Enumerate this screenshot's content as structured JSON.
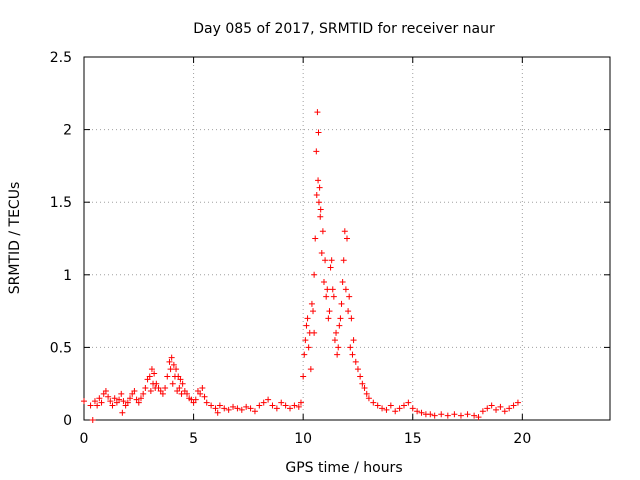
{
  "chart_data": {
    "type": "scatter",
    "title": "Day 085 of 2017, SRMTID for receiver naur",
    "xlabel": "GPS time / hours",
    "ylabel": "SRMTID / TECUs",
    "xlim": [
      0,
      24
    ],
    "ylim": [
      0,
      2.5
    ],
    "xticks": [
      0,
      5,
      10,
      15,
      20
    ],
    "xtick_labels": [
      "0",
      "5",
      "10",
      "15",
      "20"
    ],
    "yticks": [
      0,
      0.5,
      1,
      1.5,
      2,
      2.5
    ],
    "ytick_labels": [
      "0",
      "0.5",
      "1",
      "1.5",
      "2",
      "2.5"
    ],
    "grid": true,
    "marker": "+",
    "series": [
      {
        "name": "SRMTID",
        "color": "#ff0000",
        "x": [
          0.0,
          0.4,
          0.5,
          0.6,
          0.7,
          0.8,
          0.9,
          1.0,
          1.1,
          1.2,
          1.3,
          1.4,
          1.5,
          1.6,
          1.7,
          1.8,
          1.9,
          2.0,
          2.1,
          2.2,
          2.3,
          2.4,
          2.5,
          2.6,
          2.7,
          2.8,
          2.9,
          3.0,
          3.1,
          3.2,
          3.3,
          3.4,
          3.5,
          3.6,
          3.7,
          3.8,
          3.9,
          4.0,
          4.1,
          4.2,
          4.3,
          4.4,
          4.5,
          4.6,
          4.7,
          4.8,
          4.9,
          5.0,
          5.1,
          5.2,
          5.3,
          5.4,
          5.5,
          5.6,
          5.8,
          6.0,
          6.2,
          6.4,
          6.6,
          6.8,
          7.0,
          7.2,
          7.4,
          7.6,
          7.8,
          8.0,
          8.2,
          8.4,
          8.6,
          8.8,
          9.0,
          9.2,
          9.4,
          9.6,
          9.8,
          9.9,
          10.0,
          10.1,
          10.2,
          10.3,
          10.4,
          10.5,
          10.55,
          10.6,
          10.65,
          10.7,
          10.75,
          10.8,
          10.9,
          11.0,
          11.1,
          11.2,
          11.3,
          11.4,
          11.5,
          11.6,
          11.7,
          11.8,
          11.9,
          12.0,
          12.1,
          12.2,
          12.3,
          12.4,
          12.5,
          12.6,
          12.7,
          12.8,
          12.9,
          13.0,
          13.2,
          13.4,
          13.6,
          13.8,
          14.0,
          14.2,
          14.4,
          14.6,
          14.8,
          15.0,
          15.2,
          15.4,
          15.6,
          15.8,
          16.0,
          16.3,
          16.6,
          16.9,
          17.2,
          17.5,
          17.8,
          18.0,
          18.2,
          18.4,
          18.6,
          18.8,
          19.0,
          19.2,
          19.4,
          19.6,
          19.8,
          10.05,
          10.15,
          10.25,
          10.35,
          10.45,
          10.5,
          10.62,
          10.68,
          10.72,
          10.78,
          10.85,
          10.95,
          11.05,
          11.15,
          11.25,
          11.35,
          11.45,
          11.55,
          11.65,
          11.75,
          11.85,
          11.95,
          12.05,
          12.15,
          12.25,
          3.05,
          3.15,
          3.25,
          3.95,
          4.05,
          4.15,
          4.25,
          4.35,
          4.45,
          0.3,
          1.75,
          6.1
        ],
        "y": [
          0.13,
          0.0,
          0.13,
          0.1,
          0.15,
          0.12,
          0.18,
          0.2,
          0.16,
          0.13,
          0.1,
          0.15,
          0.12,
          0.14,
          0.18,
          0.13,
          0.1,
          0.12,
          0.15,
          0.18,
          0.2,
          0.14,
          0.12,
          0.15,
          0.18,
          0.22,
          0.28,
          0.3,
          0.35,
          0.32,
          0.25,
          0.22,
          0.2,
          0.18,
          0.22,
          0.3,
          0.4,
          0.43,
          0.38,
          0.35,
          0.3,
          0.28,
          0.25,
          0.2,
          0.18,
          0.15,
          0.14,
          0.12,
          0.14,
          0.2,
          0.18,
          0.22,
          0.16,
          0.12,
          0.1,
          0.08,
          0.1,
          0.08,
          0.07,
          0.09,
          0.08,
          0.07,
          0.09,
          0.08,
          0.06,
          0.1,
          0.12,
          0.14,
          0.1,
          0.08,
          0.12,
          0.1,
          0.08,
          0.1,
          0.09,
          0.12,
          0.3,
          0.55,
          0.7,
          0.6,
          0.8,
          1.0,
          1.25,
          1.85,
          2.12,
          1.98,
          1.6,
          1.45,
          1.3,
          1.1,
          0.9,
          0.75,
          1.1,
          0.85,
          0.6,
          0.5,
          0.7,
          0.95,
          1.3,
          1.25,
          0.85,
          0.7,
          0.55,
          0.4,
          0.35,
          0.3,
          0.25,
          0.22,
          0.18,
          0.15,
          0.12,
          0.1,
          0.08,
          0.07,
          0.1,
          0.06,
          0.08,
          0.1,
          0.12,
          0.08,
          0.06,
          0.05,
          0.04,
          0.04,
          0.03,
          0.04,
          0.03,
          0.04,
          0.03,
          0.04,
          0.03,
          0.02,
          0.06,
          0.08,
          0.1,
          0.07,
          0.09,
          0.06,
          0.08,
          0.1,
          0.12,
          0.45,
          0.65,
          0.5,
          0.35,
          0.75,
          0.6,
          1.55,
          1.65,
          1.5,
          1.4,
          1.15,
          0.95,
          0.85,
          0.7,
          1.05,
          0.9,
          0.55,
          0.45,
          0.65,
          0.8,
          1.1,
          0.9,
          0.75,
          0.5,
          0.45,
          0.2,
          0.25,
          0.22,
          0.35,
          0.25,
          0.3,
          0.2,
          0.22,
          0.18,
          0.1,
          0.05,
          0.05
        ]
      }
    ]
  }
}
